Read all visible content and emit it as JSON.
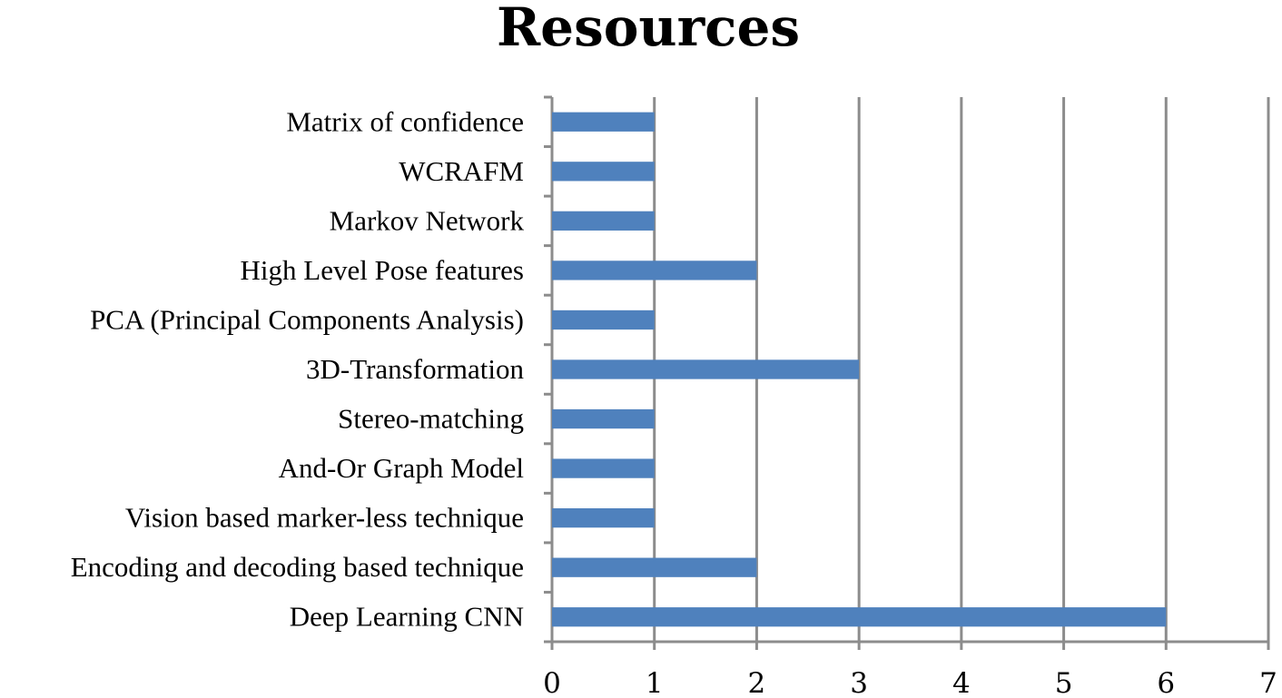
{
  "chart_data": {
    "type": "bar",
    "orientation": "horizontal",
    "title": "Resources",
    "xlabel": "",
    "ylabel": "",
    "categories": [
      "Matrix of confidence",
      "WCRAFM",
      "Markov Network",
      "High Level Pose features",
      "PCA (Principal Components Analysis)",
      "3D-Transformation",
      "Stereo-matching",
      "And-Or Graph Model",
      "Vision based marker-less technique",
      "Encoding and decoding based technique",
      "Deep Learning CNN"
    ],
    "values": [
      1,
      1,
      1,
      2,
      1,
      3,
      1,
      1,
      1,
      2,
      6
    ],
    "xlim": [
      0,
      7
    ],
    "xticks": [
      "0",
      "1",
      "2",
      "3",
      "4",
      "5",
      "6",
      "7"
    ],
    "grid": "vertical",
    "legend": "none",
    "bar_color": "#4f81bd",
    "grid_color": "#8c8c8c"
  }
}
